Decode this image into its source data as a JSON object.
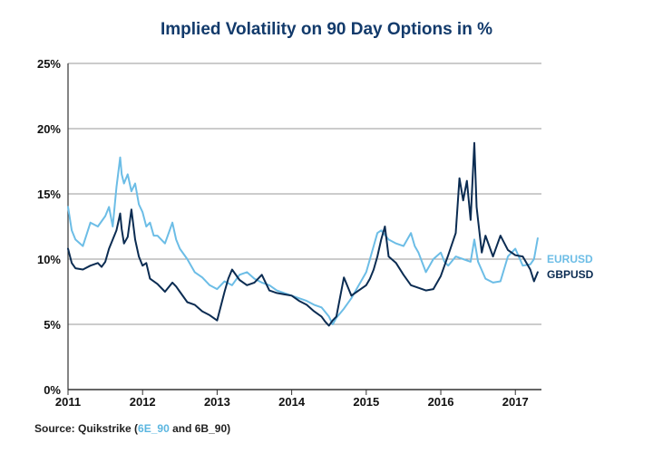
{
  "chart_data": {
    "type": "line",
    "title": "Implied Volatility on 90 Day Options in %",
    "xlabel": "",
    "ylabel": "",
    "xlim": [
      2011.0,
      2017.35
    ],
    "ylim": [
      0,
      25
    ],
    "y_ticks": [
      "0%",
      "5%",
      "10%",
      "15%",
      "20%",
      "25%"
    ],
    "y_tick_values": [
      0,
      5,
      10,
      15,
      20,
      25
    ],
    "x_ticks": [
      "2011",
      "2012",
      "2013",
      "2014",
      "2015",
      "2016",
      "2017"
    ],
    "x_tick_values": [
      2011,
      2012,
      2013,
      2014,
      2015,
      2016,
      2017
    ],
    "grid": true,
    "series": [
      {
        "name": "EURUSD",
        "color": "#6cbde6",
        "x": [
          2011.0,
          2011.05,
          2011.1,
          2011.2,
          2011.3,
          2011.4,
          2011.5,
          2011.55,
          2011.6,
          2011.65,
          2011.7,
          2011.72,
          2011.75,
          2011.8,
          2011.85,
          2011.9,
          2011.95,
          2012.0,
          2012.05,
          2012.1,
          2012.15,
          2012.2,
          2012.3,
          2012.4,
          2012.45,
          2012.5,
          2012.6,
          2012.7,
          2012.8,
          2012.9,
          2013.0,
          2013.1,
          2013.2,
          2013.3,
          2013.4,
          2013.5,
          2013.6,
          2013.7,
          2013.8,
          2013.9,
          2014.0,
          2014.1,
          2014.2,
          2014.3,
          2014.4,
          2014.5,
          2014.55,
          2014.6,
          2014.7,
          2014.8,
          2014.9,
          2014.95,
          2015.0,
          2015.05,
          2015.1,
          2015.15,
          2015.2,
          2015.3,
          2015.4,
          2015.5,
          2015.6,
          2015.65,
          2015.7,
          2015.8,
          2015.9,
          2016.0,
          2016.05,
          2016.1,
          2016.2,
          2016.3,
          2016.4,
          2016.45,
          2016.5,
          2016.6,
          2016.7,
          2016.8,
          2016.9,
          2017.0,
          2017.1,
          2017.2,
          2017.25,
          2017.3
        ],
        "values": [
          14.0,
          12.2,
          11.5,
          11.0,
          12.8,
          12.5,
          13.3,
          14.0,
          12.5,
          15.5,
          17.8,
          16.5,
          15.8,
          16.5,
          15.2,
          15.8,
          14.2,
          13.6,
          12.5,
          12.8,
          11.8,
          11.8,
          11.2,
          12.8,
          11.5,
          10.8,
          10.0,
          9.0,
          8.6,
          8.0,
          7.7,
          8.3,
          8.0,
          8.8,
          9.0,
          8.5,
          8.2,
          8.0,
          7.6,
          7.4,
          7.2,
          7.0,
          6.8,
          6.5,
          6.3,
          5.6,
          5.0,
          5.5,
          6.2,
          7.0,
          8.0,
          8.5,
          9.0,
          10.0,
          11.0,
          12.0,
          12.2,
          11.5,
          11.2,
          11.0,
          12.0,
          11.0,
          10.5,
          9.0,
          10.0,
          10.5,
          9.8,
          9.5,
          10.2,
          10.0,
          9.8,
          11.5,
          9.8,
          8.5,
          8.2,
          8.3,
          10.2,
          10.8,
          9.5,
          9.6,
          10.0,
          11.6
        ]
      },
      {
        "name": "GBPUSD",
        "color": "#0b2c52",
        "x": [
          2011.0,
          2011.05,
          2011.1,
          2011.2,
          2011.3,
          2011.4,
          2011.45,
          2011.5,
          2011.55,
          2011.6,
          2011.65,
          2011.7,
          2011.72,
          2011.75,
          2011.8,
          2011.85,
          2011.9,
          2011.95,
          2012.0,
          2012.05,
          2012.1,
          2012.2,
          2012.3,
          2012.4,
          2012.45,
          2012.5,
          2012.6,
          2012.7,
          2012.8,
          2012.9,
          2013.0,
          2013.1,
          2013.15,
          2013.2,
          2013.3,
          2013.4,
          2013.5,
          2013.6,
          2013.7,
          2013.8,
          2013.9,
          2014.0,
          2014.1,
          2014.2,
          2014.3,
          2014.4,
          2014.45,
          2014.5,
          2014.55,
          2014.6,
          2014.7,
          2014.8,
          2014.9,
          2015.0,
          2015.05,
          2015.1,
          2015.15,
          2015.2,
          2015.25,
          2015.3,
          2015.4,
          2015.5,
          2015.6,
          2015.7,
          2015.8,
          2015.9,
          2016.0,
          2016.1,
          2016.2,
          2016.25,
          2016.3,
          2016.35,
          2016.4,
          2016.45,
          2016.48,
          2016.5,
          2016.55,
          2016.6,
          2016.7,
          2016.8,
          2016.9,
          2017.0,
          2017.1,
          2017.2,
          2017.25,
          2017.3
        ],
        "values": [
          10.8,
          9.7,
          9.3,
          9.2,
          9.5,
          9.7,
          9.4,
          9.8,
          10.8,
          11.5,
          12.2,
          13.5,
          12.3,
          11.2,
          11.7,
          13.8,
          11.5,
          10.2,
          9.5,
          9.7,
          8.5,
          8.1,
          7.5,
          8.2,
          7.9,
          7.5,
          6.7,
          6.5,
          6.0,
          5.7,
          5.3,
          7.5,
          8.5,
          9.2,
          8.4,
          8.0,
          8.2,
          8.8,
          7.6,
          7.4,
          7.3,
          7.2,
          6.8,
          6.5,
          6.0,
          5.6,
          5.2,
          4.9,
          5.3,
          5.6,
          8.6,
          7.2,
          7.6,
          8.0,
          8.5,
          9.2,
          10.2,
          11.5,
          12.5,
          10.2,
          9.7,
          8.8,
          8.0,
          7.8,
          7.6,
          7.7,
          8.7,
          10.3,
          12.0,
          16.2,
          14.5,
          16.0,
          13.0,
          18.9,
          14.0,
          13.0,
          10.5,
          11.8,
          10.2,
          11.8,
          10.7,
          10.3,
          10.2,
          9.2,
          8.3,
          9.0
        ]
      }
    ]
  },
  "source": {
    "prefix": "Source: Quikstrike (",
    "highlight": "6E_90",
    "suffix": " and 6B_90)"
  }
}
